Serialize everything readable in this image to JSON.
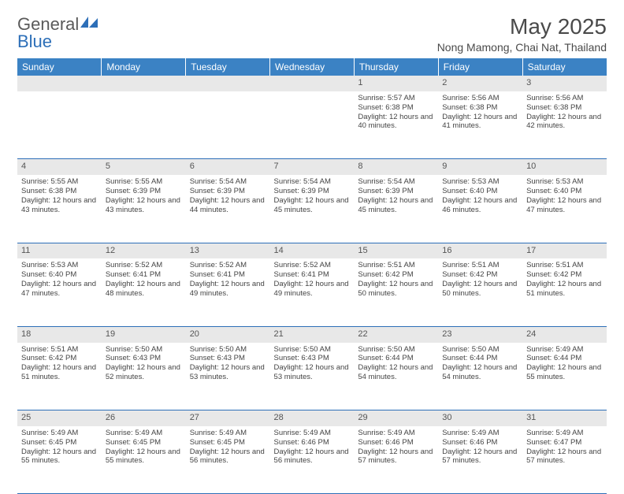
{
  "brand": {
    "part1": "General",
    "part2": "Blue"
  },
  "title": "May 2025",
  "location": "Nong Mamong, Chai Nat, Thailand",
  "colors": {
    "header_bg": "#3b82c4",
    "header_text": "#ffffff",
    "daynum_bg": "#e8e8e8",
    "row_border": "#2d6fb8",
    "text": "#444444",
    "brand_blue": "#2d6fb8"
  },
  "weekdays": [
    "Sunday",
    "Monday",
    "Tuesday",
    "Wednesday",
    "Thursday",
    "Friday",
    "Saturday"
  ],
  "weeks": [
    {
      "nums": [
        "",
        "",
        "",
        "",
        "1",
        "2",
        "3"
      ],
      "cells": [
        null,
        null,
        null,
        null,
        {
          "sunrise": "5:57 AM",
          "sunset": "6:38 PM",
          "daylight": "12 hours and 40 minutes."
        },
        {
          "sunrise": "5:56 AM",
          "sunset": "6:38 PM",
          "daylight": "12 hours and 41 minutes."
        },
        {
          "sunrise": "5:56 AM",
          "sunset": "6:38 PM",
          "daylight": "12 hours and 42 minutes."
        }
      ]
    },
    {
      "nums": [
        "4",
        "5",
        "6",
        "7",
        "8",
        "9",
        "10"
      ],
      "cells": [
        {
          "sunrise": "5:55 AM",
          "sunset": "6:38 PM",
          "daylight": "12 hours and 43 minutes."
        },
        {
          "sunrise": "5:55 AM",
          "sunset": "6:39 PM",
          "daylight": "12 hours and 43 minutes."
        },
        {
          "sunrise": "5:54 AM",
          "sunset": "6:39 PM",
          "daylight": "12 hours and 44 minutes."
        },
        {
          "sunrise": "5:54 AM",
          "sunset": "6:39 PM",
          "daylight": "12 hours and 45 minutes."
        },
        {
          "sunrise": "5:54 AM",
          "sunset": "6:39 PM",
          "daylight": "12 hours and 45 minutes."
        },
        {
          "sunrise": "5:53 AM",
          "sunset": "6:40 PM",
          "daylight": "12 hours and 46 minutes."
        },
        {
          "sunrise": "5:53 AM",
          "sunset": "6:40 PM",
          "daylight": "12 hours and 47 minutes."
        }
      ]
    },
    {
      "nums": [
        "11",
        "12",
        "13",
        "14",
        "15",
        "16",
        "17"
      ],
      "cells": [
        {
          "sunrise": "5:53 AM",
          "sunset": "6:40 PM",
          "daylight": "12 hours and 47 minutes."
        },
        {
          "sunrise": "5:52 AM",
          "sunset": "6:41 PM",
          "daylight": "12 hours and 48 minutes."
        },
        {
          "sunrise": "5:52 AM",
          "sunset": "6:41 PM",
          "daylight": "12 hours and 49 minutes."
        },
        {
          "sunrise": "5:52 AM",
          "sunset": "6:41 PM",
          "daylight": "12 hours and 49 minutes."
        },
        {
          "sunrise": "5:51 AM",
          "sunset": "6:42 PM",
          "daylight": "12 hours and 50 minutes."
        },
        {
          "sunrise": "5:51 AM",
          "sunset": "6:42 PM",
          "daylight": "12 hours and 50 minutes."
        },
        {
          "sunrise": "5:51 AM",
          "sunset": "6:42 PM",
          "daylight": "12 hours and 51 minutes."
        }
      ]
    },
    {
      "nums": [
        "18",
        "19",
        "20",
        "21",
        "22",
        "23",
        "24"
      ],
      "cells": [
        {
          "sunrise": "5:51 AM",
          "sunset": "6:42 PM",
          "daylight": "12 hours and 51 minutes."
        },
        {
          "sunrise": "5:50 AM",
          "sunset": "6:43 PM",
          "daylight": "12 hours and 52 minutes."
        },
        {
          "sunrise": "5:50 AM",
          "sunset": "6:43 PM",
          "daylight": "12 hours and 53 minutes."
        },
        {
          "sunrise": "5:50 AM",
          "sunset": "6:43 PM",
          "daylight": "12 hours and 53 minutes."
        },
        {
          "sunrise": "5:50 AM",
          "sunset": "6:44 PM",
          "daylight": "12 hours and 54 minutes."
        },
        {
          "sunrise": "5:50 AM",
          "sunset": "6:44 PM",
          "daylight": "12 hours and 54 minutes."
        },
        {
          "sunrise": "5:49 AM",
          "sunset": "6:44 PM",
          "daylight": "12 hours and 55 minutes."
        }
      ]
    },
    {
      "nums": [
        "25",
        "26",
        "27",
        "28",
        "29",
        "30",
        "31"
      ],
      "cells": [
        {
          "sunrise": "5:49 AM",
          "sunset": "6:45 PM",
          "daylight": "12 hours and 55 minutes."
        },
        {
          "sunrise": "5:49 AM",
          "sunset": "6:45 PM",
          "daylight": "12 hours and 55 minutes."
        },
        {
          "sunrise": "5:49 AM",
          "sunset": "6:45 PM",
          "daylight": "12 hours and 56 minutes."
        },
        {
          "sunrise": "5:49 AM",
          "sunset": "6:46 PM",
          "daylight": "12 hours and 56 minutes."
        },
        {
          "sunrise": "5:49 AM",
          "sunset": "6:46 PM",
          "daylight": "12 hours and 57 minutes."
        },
        {
          "sunrise": "5:49 AM",
          "sunset": "6:46 PM",
          "daylight": "12 hours and 57 minutes."
        },
        {
          "sunrise": "5:49 AM",
          "sunset": "6:47 PM",
          "daylight": "12 hours and 57 minutes."
        }
      ]
    }
  ],
  "labels": {
    "sunrise": "Sunrise:",
    "sunset": "Sunset:",
    "daylight": "Daylight:"
  }
}
